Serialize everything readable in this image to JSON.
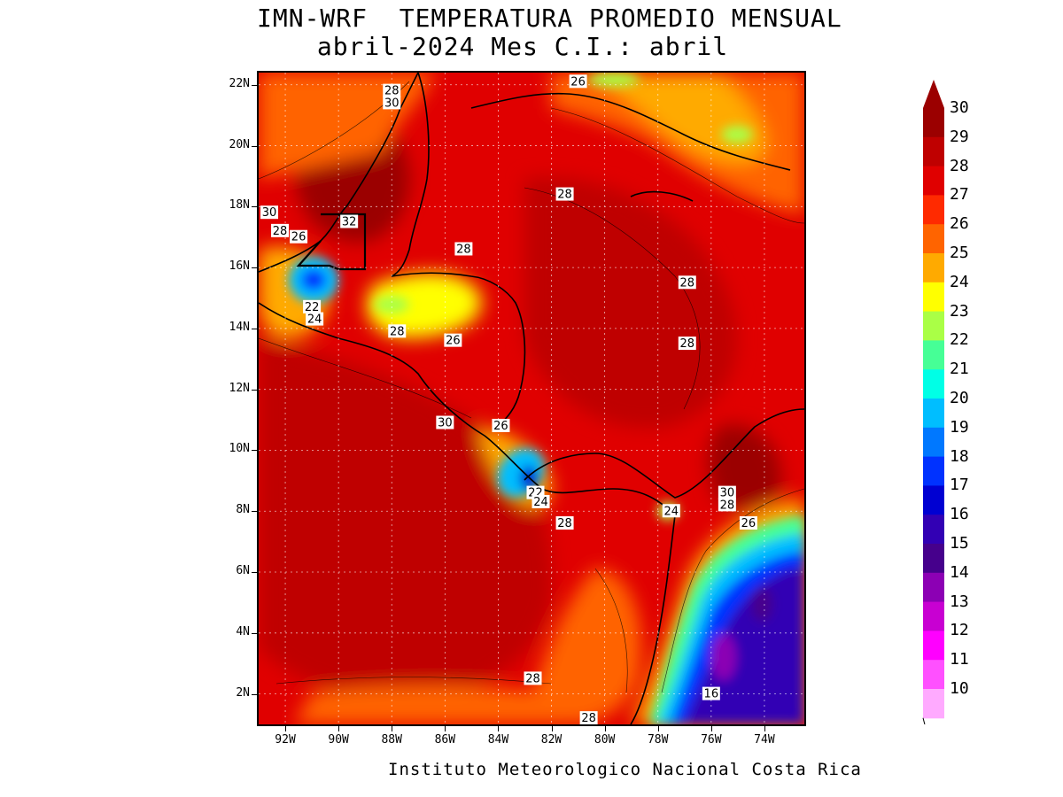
{
  "title": {
    "line1": "IMN-WRF  TEMPERATURA PROMEDIO MENSUAL",
    "line2": "abril-2024 Mes C.I.: abril"
  },
  "credit": "Instituto Meteorologico Nacional Costa Rica",
  "map": {
    "lon_range": [
      -93.0,
      -72.5
    ],
    "lat_range": [
      1.0,
      22.4
    ],
    "lat_labels": [
      {
        "lat": 22,
        "text": "22N"
      },
      {
        "lat": 20,
        "text": "20N"
      },
      {
        "lat": 18,
        "text": "18N"
      },
      {
        "lat": 16,
        "text": "16N"
      },
      {
        "lat": 14,
        "text": "14N"
      },
      {
        "lat": 12,
        "text": "12N"
      },
      {
        "lat": 10,
        "text": "10N"
      },
      {
        "lat": 8,
        "text": "8N"
      },
      {
        "lat": 6,
        "text": "6N"
      },
      {
        "lat": 4,
        "text": "4N"
      },
      {
        "lat": 2,
        "text": "2N"
      }
    ],
    "lon_labels": [
      {
        "lon": -92,
        "text": "92W"
      },
      {
        "lon": -90,
        "text": "90W"
      },
      {
        "lon": -88,
        "text": "88W"
      },
      {
        "lon": -86,
        "text": "86W"
      },
      {
        "lon": -84,
        "text": "84W"
      },
      {
        "lon": -82,
        "text": "82W"
      },
      {
        "lon": -80,
        "text": "80W"
      },
      {
        "lon": -78,
        "text": "78W"
      },
      {
        "lon": -76,
        "text": "76W"
      },
      {
        "lon": -74,
        "text": "74W"
      }
    ],
    "contour_labels": [
      {
        "lon": -88.0,
        "lat": 21.8,
        "text": "28"
      },
      {
        "lon": -88.0,
        "lat": 21.4,
        "text": "30"
      },
      {
        "lon": -81.0,
        "lat": 22.1,
        "text": "26"
      },
      {
        "lon": -92.6,
        "lat": 17.8,
        "text": "30"
      },
      {
        "lon": -89.6,
        "lat": 17.5,
        "text": "32"
      },
      {
        "lon": -92.2,
        "lat": 17.2,
        "text": "28"
      },
      {
        "lon": -91.5,
        "lat": 17.0,
        "text": "26"
      },
      {
        "lon": -81.5,
        "lat": 18.4,
        "text": "28"
      },
      {
        "lon": -85.3,
        "lat": 16.6,
        "text": "28"
      },
      {
        "lon": -76.9,
        "lat": 15.5,
        "text": "28"
      },
      {
        "lon": -91.0,
        "lat": 14.7,
        "text": "22"
      },
      {
        "lon": -90.9,
        "lat": 14.3,
        "text": "24"
      },
      {
        "lon": -87.8,
        "lat": 13.9,
        "text": "28"
      },
      {
        "lon": -85.7,
        "lat": 13.6,
        "text": "26"
      },
      {
        "lon": -76.9,
        "lat": 13.5,
        "text": "28"
      },
      {
        "lon": -86.0,
        "lat": 10.9,
        "text": "30"
      },
      {
        "lon": -83.9,
        "lat": 10.8,
        "text": "26"
      },
      {
        "lon": -82.6,
        "lat": 8.6,
        "text": "22"
      },
      {
        "lon": -82.4,
        "lat": 8.3,
        "text": "24"
      },
      {
        "lon": -81.5,
        "lat": 7.6,
        "text": "28"
      },
      {
        "lon": -75.4,
        "lat": 8.6,
        "text": "30"
      },
      {
        "lon": -75.4,
        "lat": 8.2,
        "text": "28"
      },
      {
        "lon": -74.6,
        "lat": 7.6,
        "text": "26"
      },
      {
        "lon": -77.5,
        "lat": 8.0,
        "text": "24"
      },
      {
        "lon": -82.7,
        "lat": 2.5,
        "text": "28"
      },
      {
        "lon": -80.6,
        "lat": 1.2,
        "text": "28"
      },
      {
        "lon": -76.0,
        "lat": 2.0,
        "text": "16"
      }
    ]
  },
  "colorbar": {
    "labels": [
      "30",
      "29",
      "28",
      "27",
      "26",
      "25",
      "24",
      "23",
      "22",
      "21",
      "20",
      "19",
      "18",
      "17",
      "16",
      "15",
      "14",
      "13",
      "12",
      "11",
      "10"
    ],
    "colors": [
      "#9b0000",
      "#bf0000",
      "#e00000",
      "#ff2a00",
      "#ff6400",
      "#ffaa00",
      "#ffff00",
      "#aaff46",
      "#46ff96",
      "#00ffe6",
      "#00beff",
      "#0078ff",
      "#0032ff",
      "#0000d2",
      "#3200b4",
      "#46008c",
      "#8c00b4",
      "#c800d2",
      "#ff00ff",
      "#ff50ff",
      "#ffaaff"
    ]
  }
}
